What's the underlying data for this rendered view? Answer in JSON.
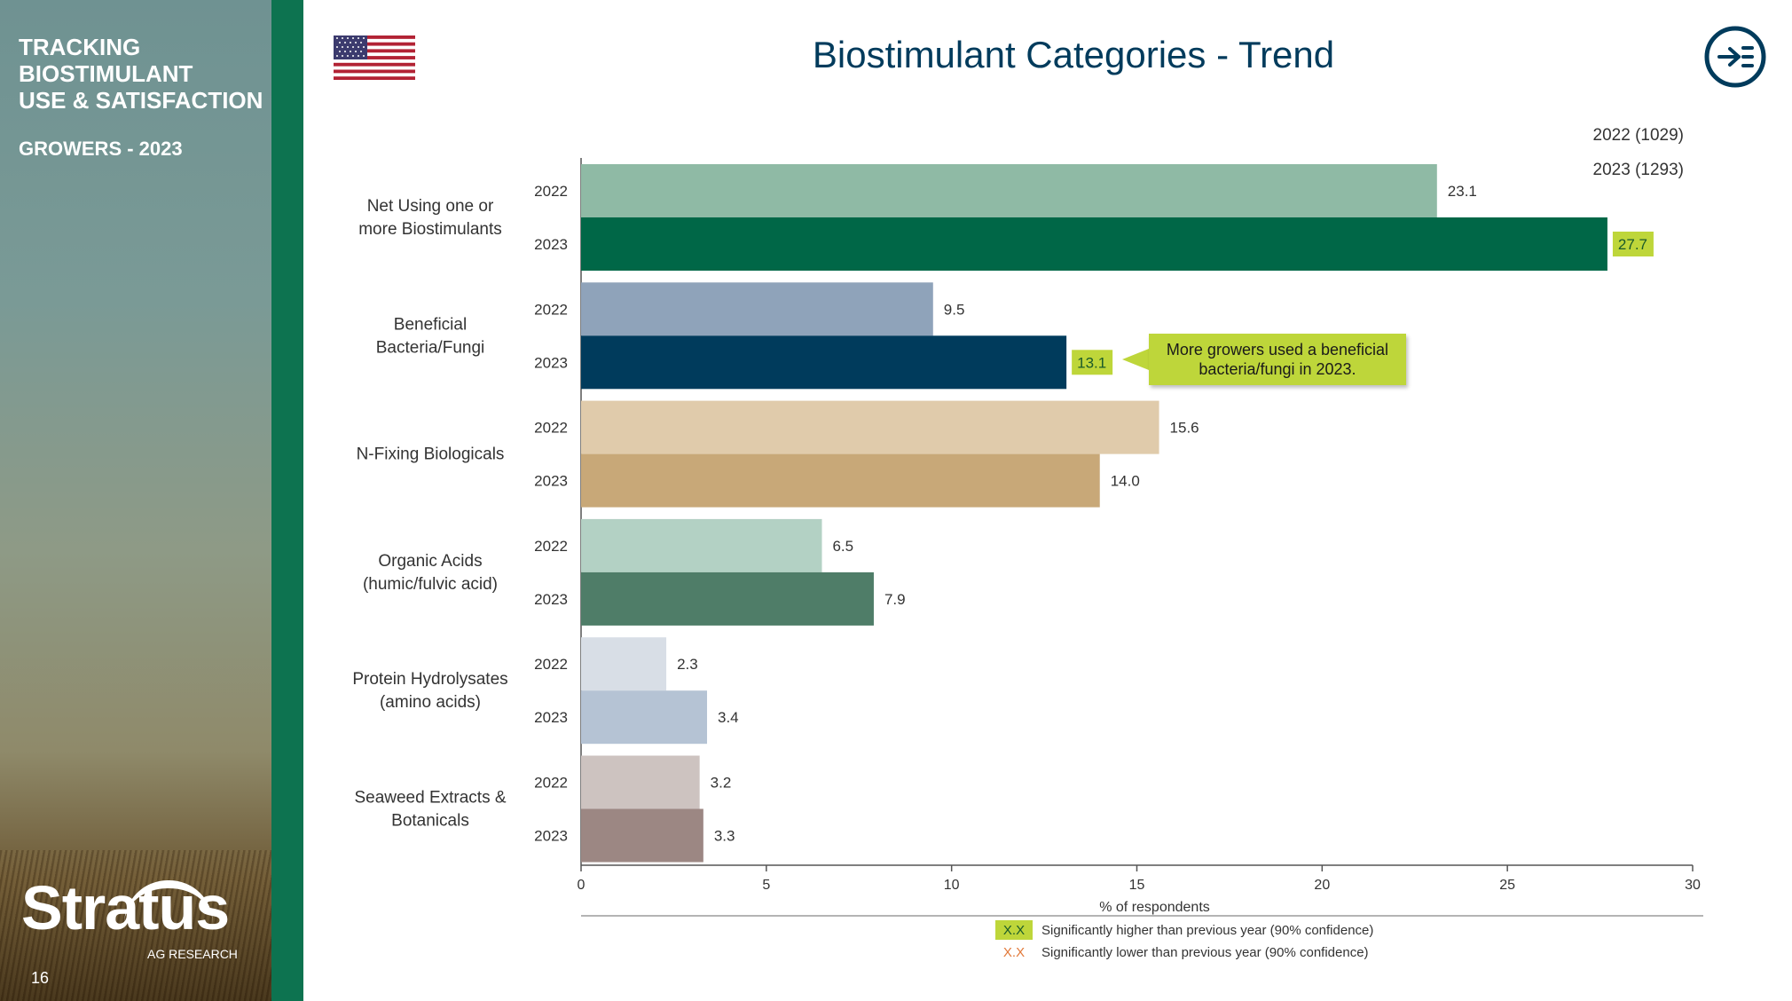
{
  "sidebar": {
    "title": "TRACKING\nBIOSTIMULANT\nUSE & SATISFACTION",
    "subtitle": "GROWERS - 2023",
    "logo_text": "Stratus",
    "logo_sub": "AG RESEARCH",
    "page_number": "16"
  },
  "header": {
    "title": "Biostimulant Categories - Trend"
  },
  "legend": {
    "items": [
      "2022 (1029)",
      "2023 (1293)"
    ]
  },
  "callout": {
    "text": "More growers used a beneficial bacteria/fungi in 2023."
  },
  "significance_legend": {
    "higher_marker": "X.X",
    "higher_text": "Significantly higher than previous year (90% confidence)",
    "lower_marker": "X.X",
    "lower_text": "Significantly lower than previous year (90% confidence)",
    "higher_color": "#bed63a",
    "lower_color": "#e2793a"
  },
  "chart_data": {
    "type": "bar",
    "orientation": "horizontal",
    "categories": [
      [
        "Net Using one or",
        "more Biostimulants"
      ],
      [
        "Beneficial",
        "Bacteria/Fungi"
      ],
      [
        "N-Fixing Biologicals"
      ],
      [
        "Organic Acids",
        "(humic/fulvic acid)"
      ],
      [
        "Protein Hydrolysates",
        "(amino acids)"
      ],
      [
        "Seaweed Extracts &",
        "Botanicals"
      ]
    ],
    "series": [
      {
        "name": "2022",
        "values": [
          23.1,
          9.5,
          15.6,
          6.5,
          2.3,
          3.2
        ],
        "labels": [
          "23.1",
          "9.5",
          "15.6",
          "6.5",
          "2.3",
          "3.2"
        ],
        "colors": [
          "#8fbaa5",
          "#8fa3ba",
          "#e0cbab",
          "#b3d1c4",
          "#d8dee6",
          "#cdc3c0"
        ]
      },
      {
        "name": "2023",
        "values": [
          27.7,
          13.1,
          14.0,
          7.9,
          3.4,
          3.3
        ],
        "labels": [
          "27.7",
          "13.1",
          "14.0",
          "7.9",
          "3.4",
          "3.3"
        ],
        "colors": [
          "#006747",
          "#003b5c",
          "#c8a878",
          "#4f7d68",
          "#b5c3d4",
          "#9c8783"
        ],
        "significant_higher": [
          true,
          true,
          false,
          false,
          false,
          false
        ]
      }
    ],
    "xlabel": "% of respondents",
    "xlim": [
      0,
      30
    ],
    "xticks": [
      "0",
      "5",
      "10",
      "15",
      "20",
      "25",
      "30"
    ],
    "grid": false
  }
}
